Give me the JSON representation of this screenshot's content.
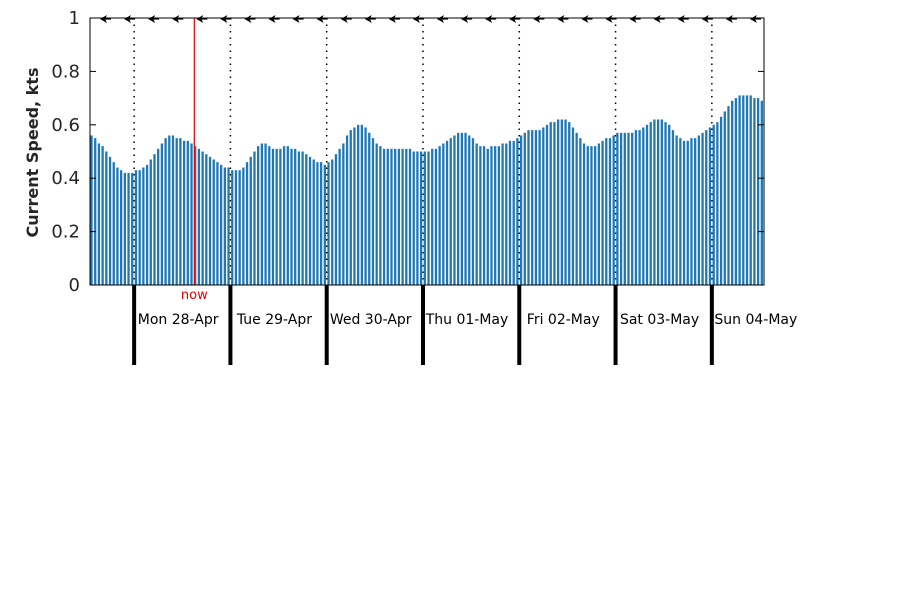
{
  "chart_data": {
    "type": "bar",
    "ylabel": "Current Speed, kts",
    "ylim": [
      0,
      1
    ],
    "yticks": [
      "0",
      "0.2",
      "0.4",
      "0.6",
      "0.8",
      "1"
    ],
    "x_unit": "hours",
    "x_range": [
      0,
      168
    ],
    "day_labels": [
      "Mon 28-Apr",
      "Tue 29-Apr",
      "Wed 30-Apr",
      "Thu 01-May",
      "Fri 02-May",
      "Sat 03-May",
      "Sun 04-May"
    ],
    "day_starts": [
      11,
      35,
      59,
      83,
      107,
      131,
      155
    ],
    "now_label": "now",
    "now_x": 26,
    "direction_arrows": "west",
    "bar_color": "#1f77b4",
    "now_color": "#e00000",
    "grid": "dotted vertical at day starts",
    "values": [
      0.56,
      0.55,
      0.53,
      0.52,
      0.5,
      0.48,
      0.46,
      0.44,
      0.43,
      0.42,
      0.42,
      0.42,
      0.43,
      0.43,
      0.44,
      0.45,
      0.47,
      0.49,
      0.51,
      0.53,
      0.55,
      0.56,
      0.56,
      0.55,
      0.55,
      0.54,
      0.54,
      0.53,
      0.52,
      0.51,
      0.5,
      0.49,
      0.48,
      0.47,
      0.46,
      0.45,
      0.44,
      0.44,
      0.43,
      0.43,
      0.43,
      0.44,
      0.46,
      0.48,
      0.5,
      0.52,
      0.53,
      0.53,
      0.52,
      0.51,
      0.51,
      0.51,
      0.52,
      0.52,
      0.51,
      0.51,
      0.5,
      0.5,
      0.49,
      0.48,
      0.47,
      0.46,
      0.46,
      0.45,
      0.46,
      0.47,
      0.49,
      0.51,
      0.53,
      0.56,
      0.58,
      0.59,
      0.6,
      0.6,
      0.59,
      0.57,
      0.55,
      0.53,
      0.52,
      0.51,
      0.51,
      0.51,
      0.51,
      0.51,
      0.51,
      0.51,
      0.51,
      0.5,
      0.5,
      0.5,
      0.5,
      0.5,
      0.51,
      0.51,
      0.52,
      0.53,
      0.54,
      0.55,
      0.56,
      0.57,
      0.57,
      0.57,
      0.56,
      0.55,
      0.53,
      0.52,
      0.52,
      0.51,
      0.52,
      0.52,
      0.52,
      0.53,
      0.53,
      0.54,
      0.54,
      0.55,
      0.56,
      0.57,
      0.58,
      0.58,
      0.58,
      0.58,
      0.59,
      0.6,
      0.61,
      0.61,
      0.62,
      0.62,
      0.62,
      0.61,
      0.59,
      0.57,
      0.55,
      0.53,
      0.52,
      0.52,
      0.52,
      0.53,
      0.54,
      0.55,
      0.55,
      0.56,
      0.57,
      0.57,
      0.57,
      0.57,
      0.57,
      0.58,
      0.58,
      0.59,
      0.6,
      0.61,
      0.62,
      0.62,
      0.62,
      0.61,
      0.6,
      0.58,
      0.56,
      0.55,
      0.54,
      0.54,
      0.55,
      0.55,
      0.56,
      0.57,
      0.58,
      0.59,
      0.6,
      0.61,
      0.63,
      0.65,
      0.67,
      0.69,
      0.7,
      0.71,
      0.71,
      0.71,
      0.71,
      0.7,
      0.7,
      0.69
    ]
  }
}
